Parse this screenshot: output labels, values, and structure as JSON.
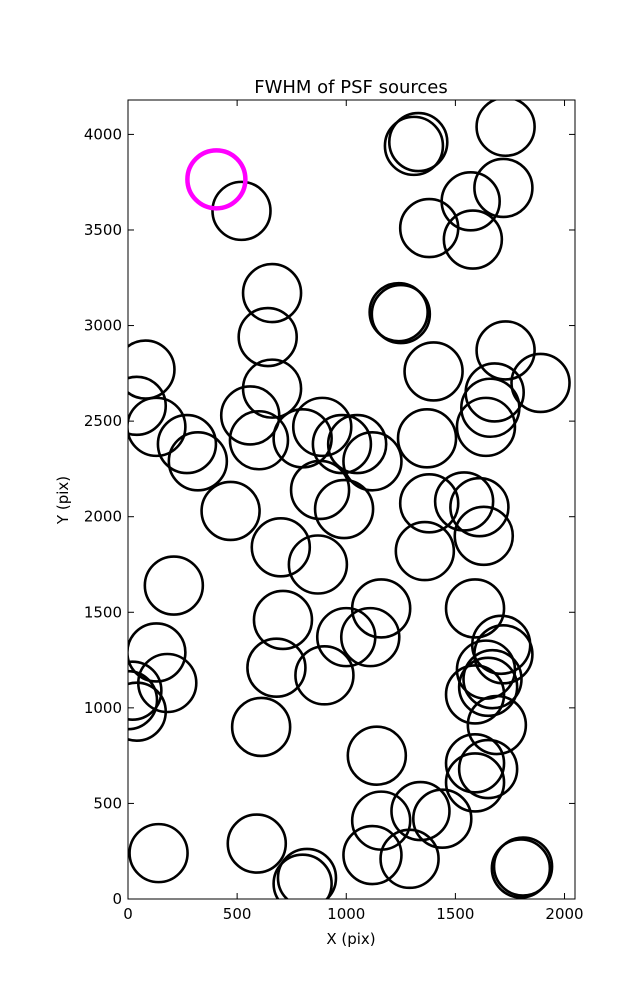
{
  "chart_data": {
    "type": "scatter",
    "title": "FWHM of PSF sources",
    "xlabel": "X (pix)",
    "ylabel": "Y (pix)",
    "xlim": [
      0,
      2048
    ],
    "ylim": [
      0,
      4180
    ],
    "xticks": [
      0,
      500,
      1000,
      1500,
      2000
    ],
    "yticks": [
      0,
      500,
      1000,
      1500,
      2000,
      2500,
      3000,
      3500,
      4000
    ],
    "grid": false,
    "marker_color": "#000000",
    "highlight_color": "#ff00ff",
    "highlight": {
      "x": 405,
      "y": 3765
    },
    "points": [
      {
        "x": 520,
        "y": 3600
      },
      {
        "x": 1310,
        "y": 3940
      },
      {
        "x": 1330,
        "y": 3960
      },
      {
        "x": 1730,
        "y": 4040
      },
      {
        "x": 1720,
        "y": 3720
      },
      {
        "x": 1570,
        "y": 3650
      },
      {
        "x": 1380,
        "y": 3510
      },
      {
        "x": 1580,
        "y": 3450
      },
      {
        "x": 660,
        "y": 3170
      },
      {
        "x": 640,
        "y": 2940
      },
      {
        "x": 1240,
        "y": 3070
      },
      {
        "x": 1250,
        "y": 3060
      },
      {
        "x": 1730,
        "y": 2870
      },
      {
        "x": 1890,
        "y": 2700
      },
      {
        "x": 80,
        "y": 2770
      },
      {
        "x": 40,
        "y": 2580
      },
      {
        "x": 130,
        "y": 2470
      },
      {
        "x": 270,
        "y": 2380
      },
      {
        "x": 320,
        "y": 2290
      },
      {
        "x": 560,
        "y": 2530
      },
      {
        "x": 600,
        "y": 2400
      },
      {
        "x": 660,
        "y": 2670
      },
      {
        "x": 800,
        "y": 2410
      },
      {
        "x": 890,
        "y": 2470
      },
      {
        "x": 980,
        "y": 2380
      },
      {
        "x": 1050,
        "y": 2380
      },
      {
        "x": 1120,
        "y": 2290
      },
      {
        "x": 1400,
        "y": 2760
      },
      {
        "x": 1370,
        "y": 2410
      },
      {
        "x": 1680,
        "y": 2650
      },
      {
        "x": 1660,
        "y": 2570
      },
      {
        "x": 1640,
        "y": 2470
      },
      {
        "x": 470,
        "y": 2030
      },
      {
        "x": 880,
        "y": 2140
      },
      {
        "x": 990,
        "y": 2040
      },
      {
        "x": 1380,
        "y": 2070
      },
      {
        "x": 1540,
        "y": 2080
      },
      {
        "x": 1610,
        "y": 2050
      },
      {
        "x": 1630,
        "y": 1900
      },
      {
        "x": 700,
        "y": 1840
      },
      {
        "x": 870,
        "y": 1750
      },
      {
        "x": 1360,
        "y": 1820
      },
      {
        "x": 210,
        "y": 1640
      },
      {
        "x": 710,
        "y": 1460
      },
      {
        "x": 1160,
        "y": 1520
      },
      {
        "x": 1000,
        "y": 1370
      },
      {
        "x": 1110,
        "y": 1370
      },
      {
        "x": 1590,
        "y": 1520
      },
      {
        "x": 130,
        "y": 1290
      },
      {
        "x": 180,
        "y": 1130
      },
      {
        "x": 20,
        "y": 1090
      },
      {
        "x": 0,
        "y": 1040
      },
      {
        "x": 40,
        "y": 980
      },
      {
        "x": 680,
        "y": 1210
      },
      {
        "x": 900,
        "y": 1170
      },
      {
        "x": 1710,
        "y": 1330
      },
      {
        "x": 1720,
        "y": 1280
      },
      {
        "x": 1640,
        "y": 1200
      },
      {
        "x": 1670,
        "y": 1150
      },
      {
        "x": 1650,
        "y": 1110
      },
      {
        "x": 1590,
        "y": 1070
      },
      {
        "x": 1690,
        "y": 910
      },
      {
        "x": 610,
        "y": 900
      },
      {
        "x": 1140,
        "y": 750
      },
      {
        "x": 1590,
        "y": 710
      },
      {
        "x": 1650,
        "y": 680
      },
      {
        "x": 1590,
        "y": 610
      },
      {
        "x": 1340,
        "y": 460
      },
      {
        "x": 1440,
        "y": 420
      },
      {
        "x": 1160,
        "y": 410
      },
      {
        "x": 590,
        "y": 290
      },
      {
        "x": 140,
        "y": 240
      },
      {
        "x": 1120,
        "y": 230
      },
      {
        "x": 1290,
        "y": 210
      },
      {
        "x": 820,
        "y": 110
      },
      {
        "x": 800,
        "y": 80
      },
      {
        "x": 1810,
        "y": 170
      },
      {
        "x": 1800,
        "y": 160
      }
    ]
  }
}
